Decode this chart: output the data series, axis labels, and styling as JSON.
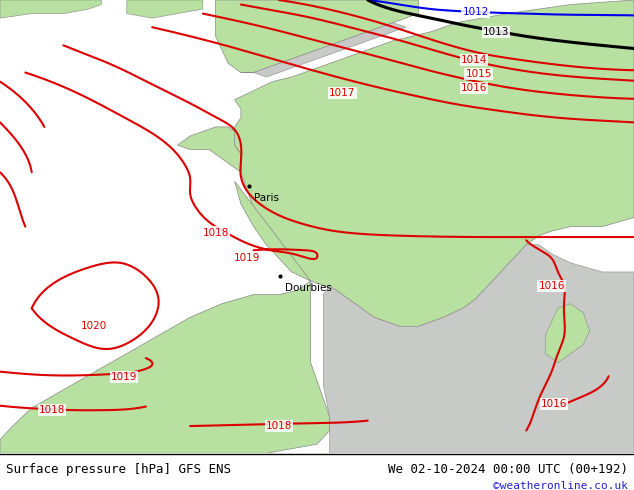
{
  "title_left": "Surface pressure [hPa] GFS ENS",
  "title_right": "We 02-10-2024 00:00 UTC (00+192)",
  "copyright": "©weatheronline.co.uk",
  "bg_land_green": "#b8e0a0",
  "bg_land_gray": "#c8cac8",
  "bg_ocean": "#c8cac8",
  "isobar_color_red": "#dd0000",
  "isobar_color_black": "#000000",
  "isobar_color_blue": "#0000ee",
  "fig_width": 6.34,
  "fig_height": 4.9,
  "dpi": 100
}
